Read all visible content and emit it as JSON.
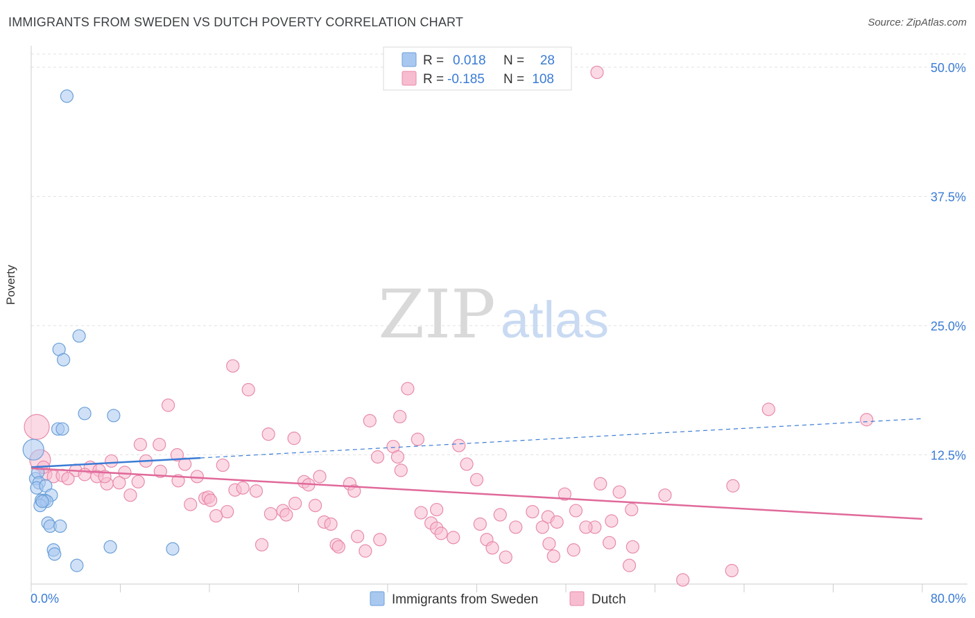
{
  "header": {
    "title": "IMMIGRANTS FROM SWEDEN VS DUTCH POVERTY CORRELATION CHART",
    "source": "Source: ZipAtlas.com"
  },
  "watermark": {
    "zip": "ZIP",
    "atlas": "atlas"
  },
  "legend_top": {
    "rows": [
      {
        "r_label": "R =",
        "r_value": "0.018",
        "n_label": "N =",
        "n_value": "28",
        "color": "#a9c8f0",
        "stroke": "#6a9fd8"
      },
      {
        "r_label": "R =",
        "r_value": "-0.185",
        "n_label": "N =",
        "n_value": "108",
        "color": "#f7bcd0",
        "stroke": "#e88aaa"
      }
    ]
  },
  "legend_bottom": {
    "items": [
      {
        "label": "Immigrants from Sweden",
        "color": "#a9c8f0",
        "stroke": "#6a9fd8"
      },
      {
        "label": "Dutch",
        "color": "#f7bcd0",
        "stroke": "#e88aaa"
      }
    ]
  },
  "chart_data": {
    "type": "scatter",
    "title": "IMMIGRANTS FROM SWEDEN VS DUTCH POVERTY CORRELATION CHART",
    "xlabel": "",
    "ylabel": "Poverty",
    "xlim": [
      0,
      80
    ],
    "ylim": [
      0,
      50
    ],
    "x_tick_labels": [
      "0.0%",
      "80.0%"
    ],
    "y_ticks": [
      12.5,
      25.0,
      37.5,
      50.0
    ],
    "y_tick_labels": [
      "12.5%",
      "25.0%",
      "37.5%",
      "50.0%"
    ],
    "grid": true,
    "colors": {
      "blue": "#6a9fd8",
      "pink": "#e88aaa",
      "blue_line": "#3a7bd5",
      "pink_line": "#e0699a",
      "axis_text": "#3a7bd5"
    },
    "series": [
      {
        "name": "Immigrants from Sweden",
        "color": "#a9c8f0",
        "stroke": "#6a9fd8",
        "points": [
          [
            3.2,
            47.2
          ],
          [
            4.3,
            24.0
          ],
          [
            2.5,
            22.7
          ],
          [
            2.9,
            21.7
          ],
          [
            4.8,
            16.5
          ],
          [
            7.4,
            16.3
          ],
          [
            2.4,
            15.0
          ],
          [
            2.8,
            15.0
          ],
          [
            0.2,
            13.0
          ],
          [
            0.4,
            10.2
          ],
          [
            0.6,
            10.8
          ],
          [
            0.7,
            9.8
          ],
          [
            0.5,
            9.3
          ],
          [
            1.3,
            9.5
          ],
          [
            1.8,
            8.6
          ],
          [
            0.9,
            8.1
          ],
          [
            1.2,
            8.1
          ],
          [
            1.4,
            8.0
          ],
          [
            0.8,
            7.6
          ],
          [
            1.5,
            5.9
          ],
          [
            1.7,
            5.6
          ],
          [
            2.6,
            5.6
          ],
          [
            7.1,
            3.6
          ],
          [
            12.7,
            3.4
          ],
          [
            2.0,
            3.3
          ],
          [
            2.1,
            2.9
          ],
          [
            4.1,
            1.8
          ],
          [
            1.0,
            8.0
          ]
        ],
        "sizes": [
          9,
          9,
          9,
          9,
          9,
          9,
          9,
          9,
          15,
          9,
          9,
          9,
          9,
          9,
          9,
          9,
          9,
          9,
          9,
          9,
          9,
          9,
          9,
          9,
          9,
          9,
          9,
          9
        ],
        "trend": {
          "x0": 0,
          "y0": 11.3,
          "x1": 15.2,
          "y1": 12.2,
          "ext_x1": 80,
          "ext_y1": 16.0
        }
      },
      {
        "name": "Dutch",
        "color": "#f7bcd0",
        "stroke": "#e88aaa",
        "points": [
          [
            50.8,
            49.5
          ],
          [
            18.1,
            21.1
          ],
          [
            19.5,
            18.8
          ],
          [
            33.8,
            18.9
          ],
          [
            12.3,
            17.3
          ],
          [
            66.2,
            16.9
          ],
          [
            30.4,
            15.8
          ],
          [
            33.1,
            16.2
          ],
          [
            75.0,
            15.9
          ],
          [
            21.3,
            14.5
          ],
          [
            23.6,
            14.1
          ],
          [
            34.7,
            14.0
          ],
          [
            9.8,
            13.5
          ],
          [
            11.5,
            13.5
          ],
          [
            32.5,
            13.3
          ],
          [
            38.4,
            13.4
          ],
          [
            13.1,
            12.5
          ],
          [
            31.1,
            12.3
          ],
          [
            32.9,
            12.3
          ],
          [
            7.2,
            11.9
          ],
          [
            10.3,
            11.9
          ],
          [
            13.8,
            11.6
          ],
          [
            17.2,
            11.5
          ],
          [
            39.1,
            11.6
          ],
          [
            5.3,
            11.3
          ],
          [
            4.0,
            11.0
          ],
          [
            6.1,
            11.0
          ],
          [
            8.4,
            10.8
          ],
          [
            11.6,
            10.9
          ],
          [
            1.3,
            10.6
          ],
          [
            2.0,
            10.4
          ],
          [
            2.8,
            10.5
          ],
          [
            3.3,
            10.2
          ],
          [
            4.8,
            10.6
          ],
          [
            5.9,
            10.4
          ],
          [
            14.9,
            10.4
          ],
          [
            13.2,
            10.0
          ],
          [
            25.9,
            10.4
          ],
          [
            9.6,
            9.9
          ],
          [
            6.8,
            9.7
          ],
          [
            7.9,
            9.8
          ],
          [
            24.5,
            9.9
          ],
          [
            24.9,
            9.6
          ],
          [
            28.6,
            9.7
          ],
          [
            40.0,
            10.1
          ],
          [
            29.0,
            9.0
          ],
          [
            18.3,
            9.1
          ],
          [
            19.0,
            9.3
          ],
          [
            20.2,
            9.0
          ],
          [
            51.1,
            9.7
          ],
          [
            52.8,
            8.9
          ],
          [
            63.0,
            9.5
          ],
          [
            8.9,
            8.6
          ],
          [
            15.6,
            8.3
          ],
          [
            15.9,
            8.4
          ],
          [
            16.1,
            8.1
          ],
          [
            47.9,
            8.7
          ],
          [
            56.9,
            8.6
          ],
          [
            14.3,
            7.7
          ],
          [
            23.7,
            7.8
          ],
          [
            25.5,
            7.6
          ],
          [
            17.6,
            7.0
          ],
          [
            16.6,
            6.6
          ],
          [
            21.5,
            6.8
          ],
          [
            22.6,
            7.1
          ],
          [
            22.9,
            6.7
          ],
          [
            35.0,
            6.9
          ],
          [
            36.4,
            7.2
          ],
          [
            42.1,
            6.7
          ],
          [
            45.0,
            7.0
          ],
          [
            46.4,
            6.5
          ],
          [
            48.9,
            7.1
          ],
          [
            53.9,
            7.2
          ],
          [
            26.3,
            6.0
          ],
          [
            26.9,
            5.8
          ],
          [
            35.9,
            5.9
          ],
          [
            40.3,
            5.8
          ],
          [
            47.2,
            6.0
          ],
          [
            43.5,
            5.5
          ],
          [
            45.9,
            5.5
          ],
          [
            52.1,
            6.1
          ],
          [
            50.6,
            5.5
          ],
          [
            36.4,
            5.4
          ],
          [
            36.8,
            4.9
          ],
          [
            37.9,
            4.5
          ],
          [
            29.3,
            4.6
          ],
          [
            31.3,
            4.3
          ],
          [
            40.9,
            4.3
          ],
          [
            46.5,
            3.9
          ],
          [
            51.9,
            4.0
          ],
          [
            20.7,
            3.8
          ],
          [
            27.4,
            3.8
          ],
          [
            27.6,
            3.6
          ],
          [
            41.4,
            3.5
          ],
          [
            48.7,
            3.3
          ],
          [
            54.0,
            3.6
          ],
          [
            30.0,
            3.2
          ],
          [
            42.6,
            2.6
          ],
          [
            46.9,
            2.7
          ],
          [
            53.7,
            1.8
          ],
          [
            62.9,
            1.3
          ],
          [
            58.5,
            0.4
          ],
          [
            0.5,
            15.2
          ],
          [
            0.8,
            12.0
          ],
          [
            1.1,
            11.3
          ],
          [
            6.6,
            10.4
          ],
          [
            49.8,
            5.5
          ],
          [
            33.2,
            11.0
          ]
        ],
        "sizes": [
          9,
          9,
          9,
          9,
          9,
          9,
          9,
          9,
          9,
          9,
          9,
          9,
          9,
          9,
          9,
          9,
          9,
          9,
          9,
          9,
          9,
          9,
          9,
          9,
          9,
          9,
          9,
          9,
          9,
          9,
          9,
          9,
          9,
          9,
          9,
          9,
          9,
          9,
          9,
          9,
          9,
          9,
          9,
          9,
          9,
          9,
          9,
          9,
          9,
          9,
          9,
          9,
          9,
          9,
          9,
          9,
          9,
          9,
          9,
          9,
          9,
          9,
          9,
          9,
          9,
          9,
          9,
          9,
          9,
          9,
          9,
          9,
          9,
          9,
          9,
          9,
          9,
          9,
          9,
          9,
          9,
          9,
          9,
          9,
          9,
          9,
          9,
          9,
          9,
          9,
          9,
          9,
          9,
          9,
          9,
          9,
          9,
          9,
          9,
          9,
          9,
          9,
          18,
          15,
          9,
          9,
          9,
          9
        ],
        "trend": {
          "x0": 0,
          "y0": 11.2,
          "x1": 80,
          "y1": 6.3
        }
      }
    ]
  }
}
